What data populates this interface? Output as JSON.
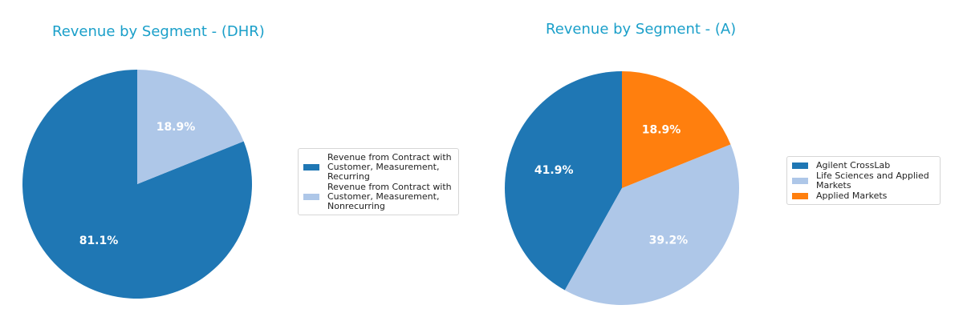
{
  "chart_data": [
    {
      "type": "pie",
      "title": "Revenue by Segment - (DHR)",
      "legend_position": "right",
      "slices": [
        {
          "label": "Revenue from Contract with Customer, Measurement, Recurring",
          "value": 81.1,
          "display": "81.1%",
          "color": "#1f77b4"
        },
        {
          "label": "Revenue from Contract with Customer, Measurement, Nonrecurring",
          "value": 18.9,
          "display": "18.9%",
          "color": "#aec7e8"
        }
      ]
    },
    {
      "type": "pie",
      "title": "Revenue by Segment - (A)",
      "legend_position": "right",
      "slices": [
        {
          "label": "Agilent CrossLab",
          "value": 41.9,
          "display": "41.9%",
          "color": "#1f77b4"
        },
        {
          "label": "Life Sciences and Applied Markets",
          "value": 39.2,
          "display": "39.2%",
          "color": "#aec7e8"
        },
        {
          "label": "Applied Markets",
          "value": 18.9,
          "display": "18.9%",
          "color": "#ff7f0e"
        }
      ]
    }
  ],
  "legend_labels": [
    [
      "Revenue from Contract with\nCustomer, Measurement,\nRecurring",
      "Revenue from Contract with\nCustomer, Measurement,\nNonrecurring"
    ],
    [
      "Agilent CrossLab",
      "Life Sciences and Applied\nMarkets",
      "Applied Markets"
    ]
  ]
}
